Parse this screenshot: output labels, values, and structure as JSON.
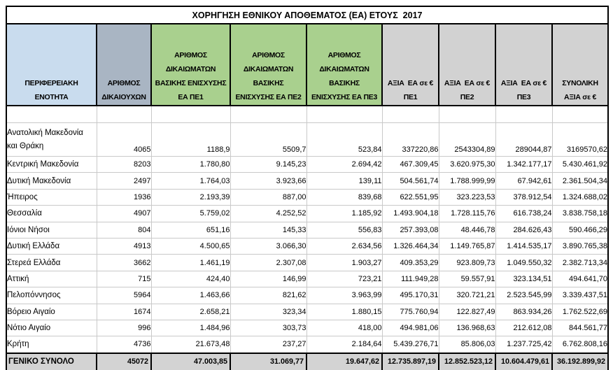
{
  "title": "ΧΟΡΗΓΗΣΗ ΕΘΝΙΚΟΥ ΑΠΟΘΕΜΑΤΟΣ (ΕΑ) ΕΤΟΥΣ  2017",
  "columns": [
    {
      "id": "region",
      "label": "ΠΕΡΙΦΕΡΕΙΑΚΗ\nΕΝΟΤΗΤΑ",
      "fill": "#c9dcee",
      "width": 129
    },
    {
      "id": "beneficiaries",
      "label": "ΑΡΙΘΜΟΣ\nΔΙΚΑΙΟΥΧΩΝ",
      "fill": "#a9b5c3",
      "width": 78
    },
    {
      "id": "rights-pe1",
      "label": "ΑΡΙΘΜΟΣ\nΔΙΚΑΙΩΜΑΤΩΝ\nΒΑΣΙΚΗΣ ΕΝΙΣΧΥΣΗΣ\nΕΑ ΠΕ1",
      "fill": "#a9d08e",
      "width": 113
    },
    {
      "id": "rights-pe2",
      "label": "ΑΡΙΘΜΟΣ\nΔΙΚΑΙΩΜΑΤΩΝ\nΒΑΣΙΚΗΣ\nΕΝΙΣΧΥΣΗΣ ΕΑ ΠΕ2",
      "fill": "#a9d08e",
      "width": 109
    },
    {
      "id": "rights-pe3",
      "label": "ΑΡΙΘΜΟΣ\nΔΙΚΑΙΩΜΑΤΩΝ\nΒΑΣΙΚΗΣ\nΕΝΙΣΧΥΣΗΣ ΕΑ ΠΕ3",
      "fill": "#a9d08e",
      "width": 108
    },
    {
      "id": "value-pe1",
      "label": "ΑΞΙΑ  ΕΑ σε €\nΠΕ1",
      "fill": "#d2d2d2",
      "width": 81
    },
    {
      "id": "value-pe2",
      "label": "ΑΞΙΑ  ΕΑ σε €\nΠΕ2",
      "fill": "#d2d2d2",
      "width": 81
    },
    {
      "id": "value-pe3",
      "label": "ΑΞΙΑ  ΕΑ σε €\nΠΕ3",
      "fill": "#d2d2d2",
      "width": 81
    },
    {
      "id": "total-value",
      "label": "ΣΥΝΟΛΙΚΗ\nΑΞΙΑ σε €",
      "fill": "#d2d2d2",
      "width": 80
    }
  ],
  "rows": [
    {
      "region": "Ανατολική Μακεδονία\nκαι Θράκη",
      "values": [
        "4065",
        "1188,9",
        "5509,7",
        "523,84",
        "337220,86",
        "2543304,89",
        "289044,87",
        "3169570,62"
      ]
    },
    {
      "region": "Κεντρική Μακεδονία",
      "values": [
        "8203",
        "1.780,80",
        "9.145,23",
        "2.694,42",
        "467.309,45",
        "3.620.975,30",
        "1.342.177,17",
        "5.430.461,92"
      ]
    },
    {
      "region": "Δυτική Μακεδονία",
      "values": [
        "2497",
        "1.764,03",
        "3.923,66",
        "139,11",
        "504.561,74",
        "1.788.999,99",
        "67.942,61",
        "2.361.504,34"
      ]
    },
    {
      "region": "Ήπειρος",
      "values": [
        "1936",
        "2.193,39",
        "887,00",
        "839,68",
        "622.551,95",
        "323.223,53",
        "378.912,54",
        "1.324.688,02"
      ]
    },
    {
      "region": "Θεσσαλία",
      "values": [
        "4907",
        "5.759,02",
        "4.252,52",
        "1.185,92",
        "1.493.904,18",
        "1.728.115,76",
        "616.738,24",
        "3.838.758,18"
      ]
    },
    {
      "region": "Ιόνιοι Νήσοι",
      "values": [
        "804",
        "651,16",
        "145,33",
        "556,83",
        "257.393,08",
        "48.446,78",
        "284.626,43",
        "590.466,29"
      ]
    },
    {
      "region": "Δυτική Ελλάδα",
      "values": [
        "4913",
        "4.500,65",
        "3.066,30",
        "2.634,56",
        "1.326.464,34",
        "1.149.765,87",
        "1.414.535,17",
        "3.890.765,38"
      ]
    },
    {
      "region": "Στερεά Ελλάδα",
      "values": [
        "3662",
        "1.461,19",
        "2.307,08",
        "1.903,27",
        "409.353,29",
        "923.809,73",
        "1.049.550,32",
        "2.382.713,34"
      ]
    },
    {
      "region": "Αττική",
      "values": [
        "715",
        "424,40",
        "146,99",
        "723,21",
        "111.949,28",
        "59.557,91",
        "323.134,51",
        "494.641,70"
      ]
    },
    {
      "region": "Πελοπόννησος",
      "values": [
        "5964",
        "1.463,66",
        "821,62",
        "3.963,99",
        "495.170,31",
        "320.721,21",
        "2.523.545,99",
        "3.339.437,51"
      ]
    },
    {
      "region": "Βόρειο Αιγαίο",
      "values": [
        "1674",
        "2.658,21",
        "323,34",
        "1.880,15",
        "775.760,94",
        "122.827,49",
        "863.934,26",
        "1.762.522,69"
      ]
    },
    {
      "region": "Νότιο Αιγαίο",
      "values": [
        "996",
        "1.484,96",
        "303,73",
        "418,00",
        "494.981,06",
        "136.968,63",
        "212.612,08",
        "844.561,77"
      ]
    },
    {
      "region": "Κρήτη",
      "values": [
        "4736",
        "21.673,48",
        "237,27",
        "2.184,64",
        "5.439.276,71",
        "85.806,03",
        "1.237.725,42",
        "6.762.808,16"
      ]
    }
  ],
  "total": {
    "label": "ΓΕΝΙΚΟ ΣΥΝΟΛΟ",
    "values": [
      "45072",
      "47.003,85",
      "31.069,77",
      "19.647,62",
      "12.735.897,19",
      "12.852.523,12",
      "10.604.479,61",
      "36.192.899,92"
    ],
    "fill": "#d3d3d3"
  },
  "colors": {
    "outer_border": "#000000",
    "grid_line": "#c9c9c9",
    "header_blue": "#c9dcee",
    "header_gray_blue": "#a9b5c3",
    "header_green": "#a9d08e",
    "header_gray": "#d2d2d2",
    "total_fill": "#d3d3d3",
    "background": "#ffffff"
  }
}
